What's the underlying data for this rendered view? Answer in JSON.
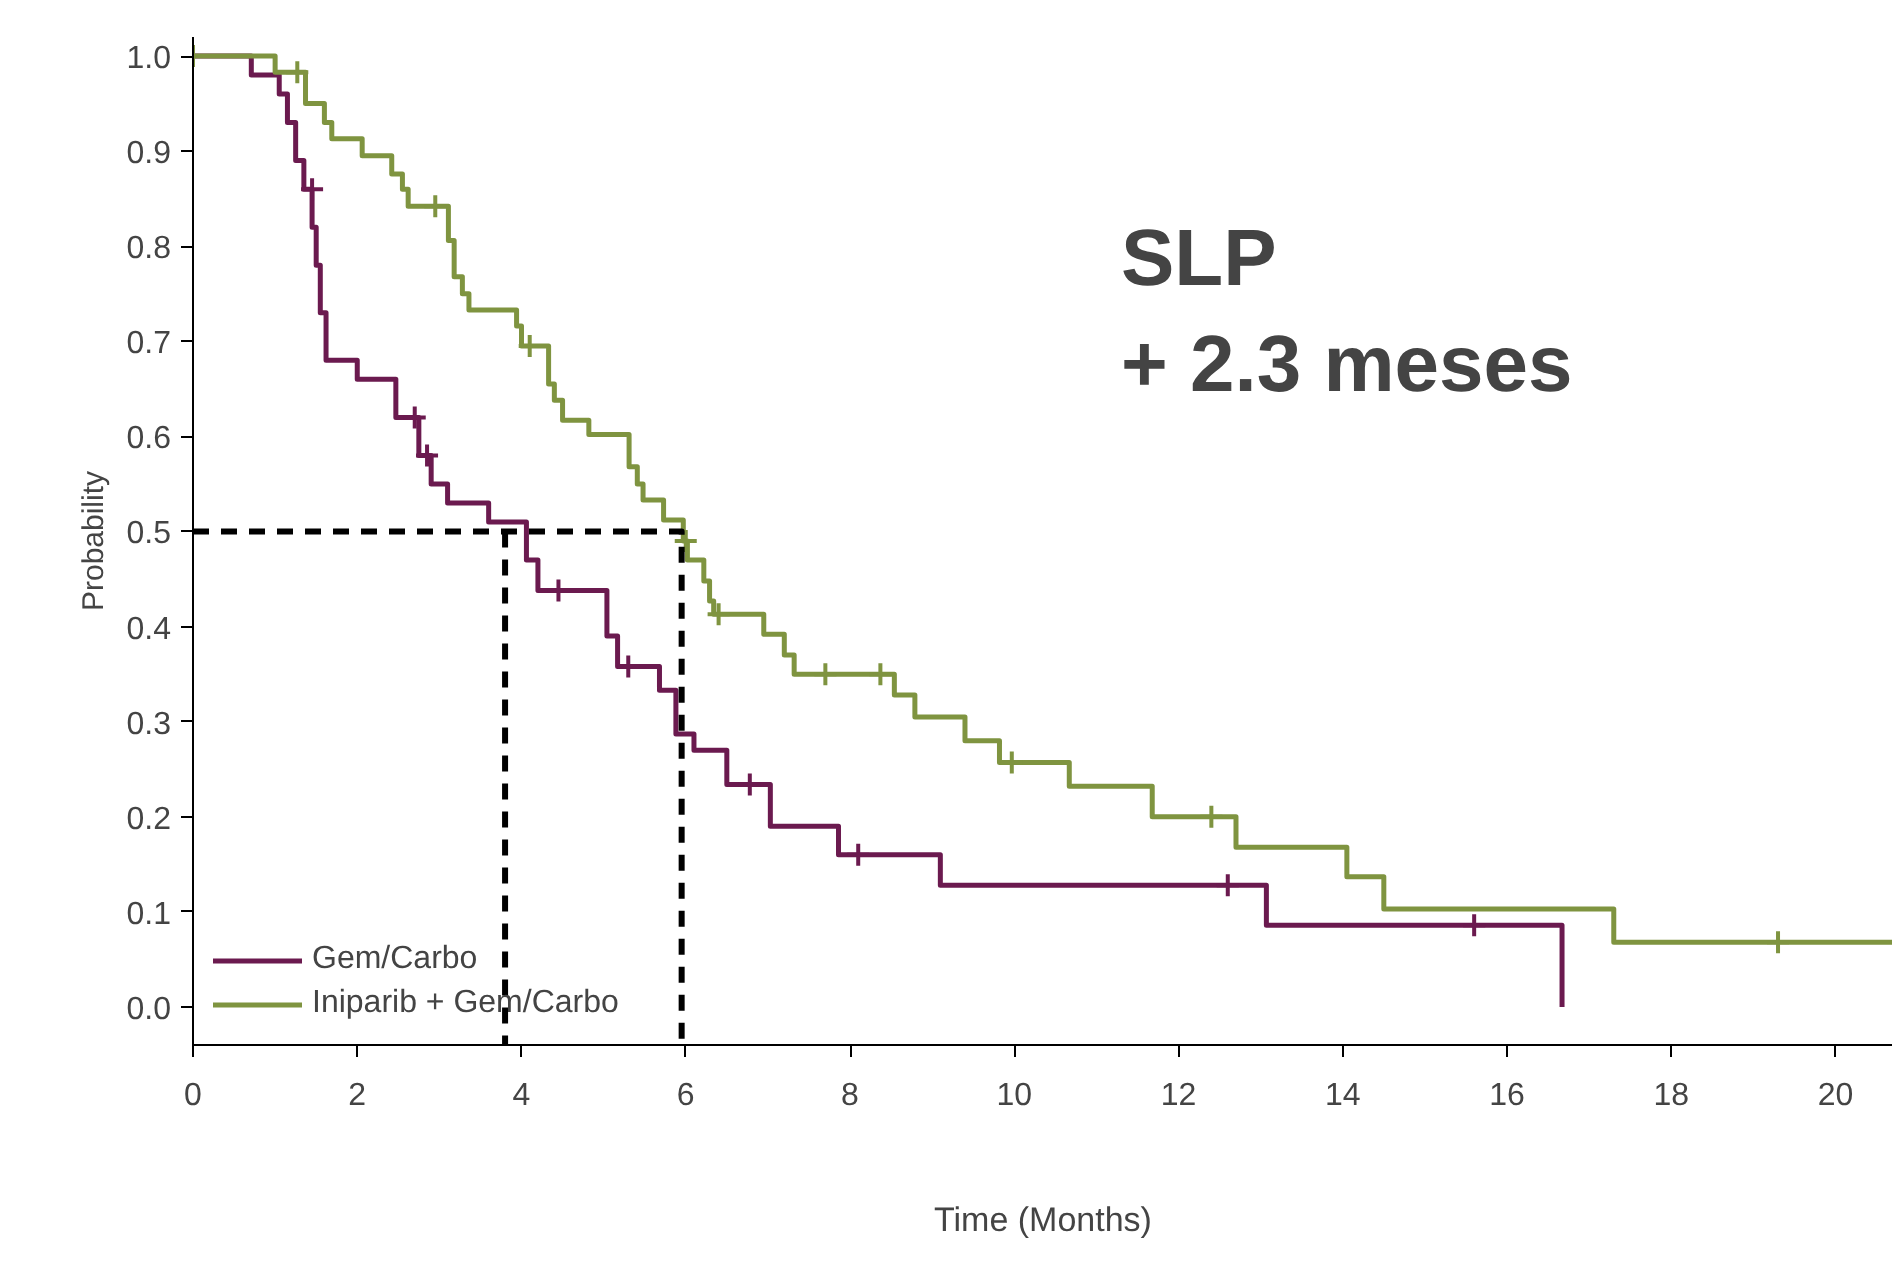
{
  "chart_data": {
    "type": "step",
    "xlabel": "Time (Months)",
    "ylabel": "Probability",
    "xlim": [
      0,
      20.7
    ],
    "ylim": [
      -0.04,
      1.02
    ],
    "xticks": [
      0,
      2,
      4,
      6,
      8,
      10,
      12,
      14,
      16,
      18,
      20
    ],
    "yticks": [
      {
        "value": 0,
        "label": "0.0"
      },
      0.1,
      0.2,
      0.3,
      0.4,
      0.5,
      0.6,
      0.7,
      0.8,
      0.9,
      {
        "value": 1,
        "label": "1.0"
      }
    ],
    "grid": false,
    "legend": "bottom left",
    "annotations": [
      "SLP\n+ 2.3 meses"
    ],
    "series": [
      {
        "name": "Gem/Carbo",
        "color": "#6b1a4f",
        "x": [
          0,
          0.71,
          1.05,
          1.15,
          1.25,
          1.35,
          1.45,
          1.5,
          1.55,
          1.62,
          2.0,
          2.47,
          2.75,
          2.9,
          3.1,
          3.6,
          4.06,
          4.2,
          5.04,
          5.17,
          5.68,
          5.88,
          6.1,
          6.5,
          7.03,
          7.86,
          9.1,
          13.07,
          16.67
        ],
        "values": [
          1.0,
          0.98,
          0.96,
          0.93,
          0.89,
          0.86,
          0.82,
          0.78,
          0.73,
          0.68,
          0.66,
          0.62,
          0.58,
          0.55,
          0.53,
          0.51,
          0.47,
          0.438,
          0.39,
          0.358,
          0.333,
          0.287,
          0.27,
          0.234,
          0.19,
          0.16,
          0.128,
          0.086,
          0.0
        ]
      },
      {
        "name": "Iniparib + Gem/Carbo",
        "color": "#7f9440",
        "x": [
          0,
          1.0,
          1.37,
          1.6,
          1.69,
          2.06,
          2.42,
          2.55,
          2.62,
          3.11,
          3.18,
          3.28,
          3.36,
          3.94,
          4.0,
          4.33,
          4.4,
          4.5,
          4.82,
          5.31,
          5.41,
          5.48,
          5.73,
          5.97,
          6.02,
          6.22,
          6.29,
          6.34,
          6.95,
          7.2,
          7.32,
          8.54,
          8.79,
          9.4,
          9.82,
          10.67,
          11.68,
          12.7,
          14.05,
          14.5,
          17.3,
          20.7
        ],
        "values": [
          1.0,
          0.983,
          0.95,
          0.93,
          0.913,
          0.895,
          0.876,
          0.86,
          0.842,
          0.806,
          0.768,
          0.75,
          0.733,
          0.716,
          0.695,
          0.655,
          0.638,
          0.617,
          0.602,
          0.568,
          0.55,
          0.533,
          0.512,
          0.49,
          0.47,
          0.448,
          0.427,
          0.413,
          0.392,
          0.37,
          0.35,
          0.328,
          0.305,
          0.28,
          0.257,
          0.232,
          0.2,
          0.168,
          0.137,
          0.103,
          0.068,
          0.068
        ]
      },
      {
        "type": "scatter",
        "marker": "cross",
        "color": "#6b1a4f",
        "x": [
          1.45,
          2.7,
          2.85,
          4.45,
          5.3,
          6.78,
          8.1,
          12.6,
          15.6
        ],
        "values": [
          0.86,
          0.62,
          0.58,
          0.438,
          0.358,
          0.234,
          0.16,
          0.128,
          0.086
        ]
      },
      {
        "type": "scatter",
        "marker": "cross",
        "color": "#7f9440",
        "x": [
          0,
          1.27,
          2.95,
          4.1,
          6.0,
          6.4,
          7.7,
          8.37,
          9.97,
          12.4,
          19.3
        ],
        "values": [
          1.0,
          0.983,
          0.842,
          0.695,
          0.49,
          0.413,
          0.35,
          0.35,
          0.257,
          0.2,
          0.068
        ]
      },
      {
        "type": "line",
        "line_style": "dashed",
        "color": "#000000",
        "x": [
          0,
          5.95,
          5.95
        ],
        "values": [
          0.5,
          0.5,
          -0.04
        ]
      },
      {
        "type": "line",
        "line_style": "dashed",
        "color": "#000000",
        "x": [
          3.8,
          3.8
        ],
        "values": [
          0.5,
          -0.04
        ]
      }
    ]
  }
}
